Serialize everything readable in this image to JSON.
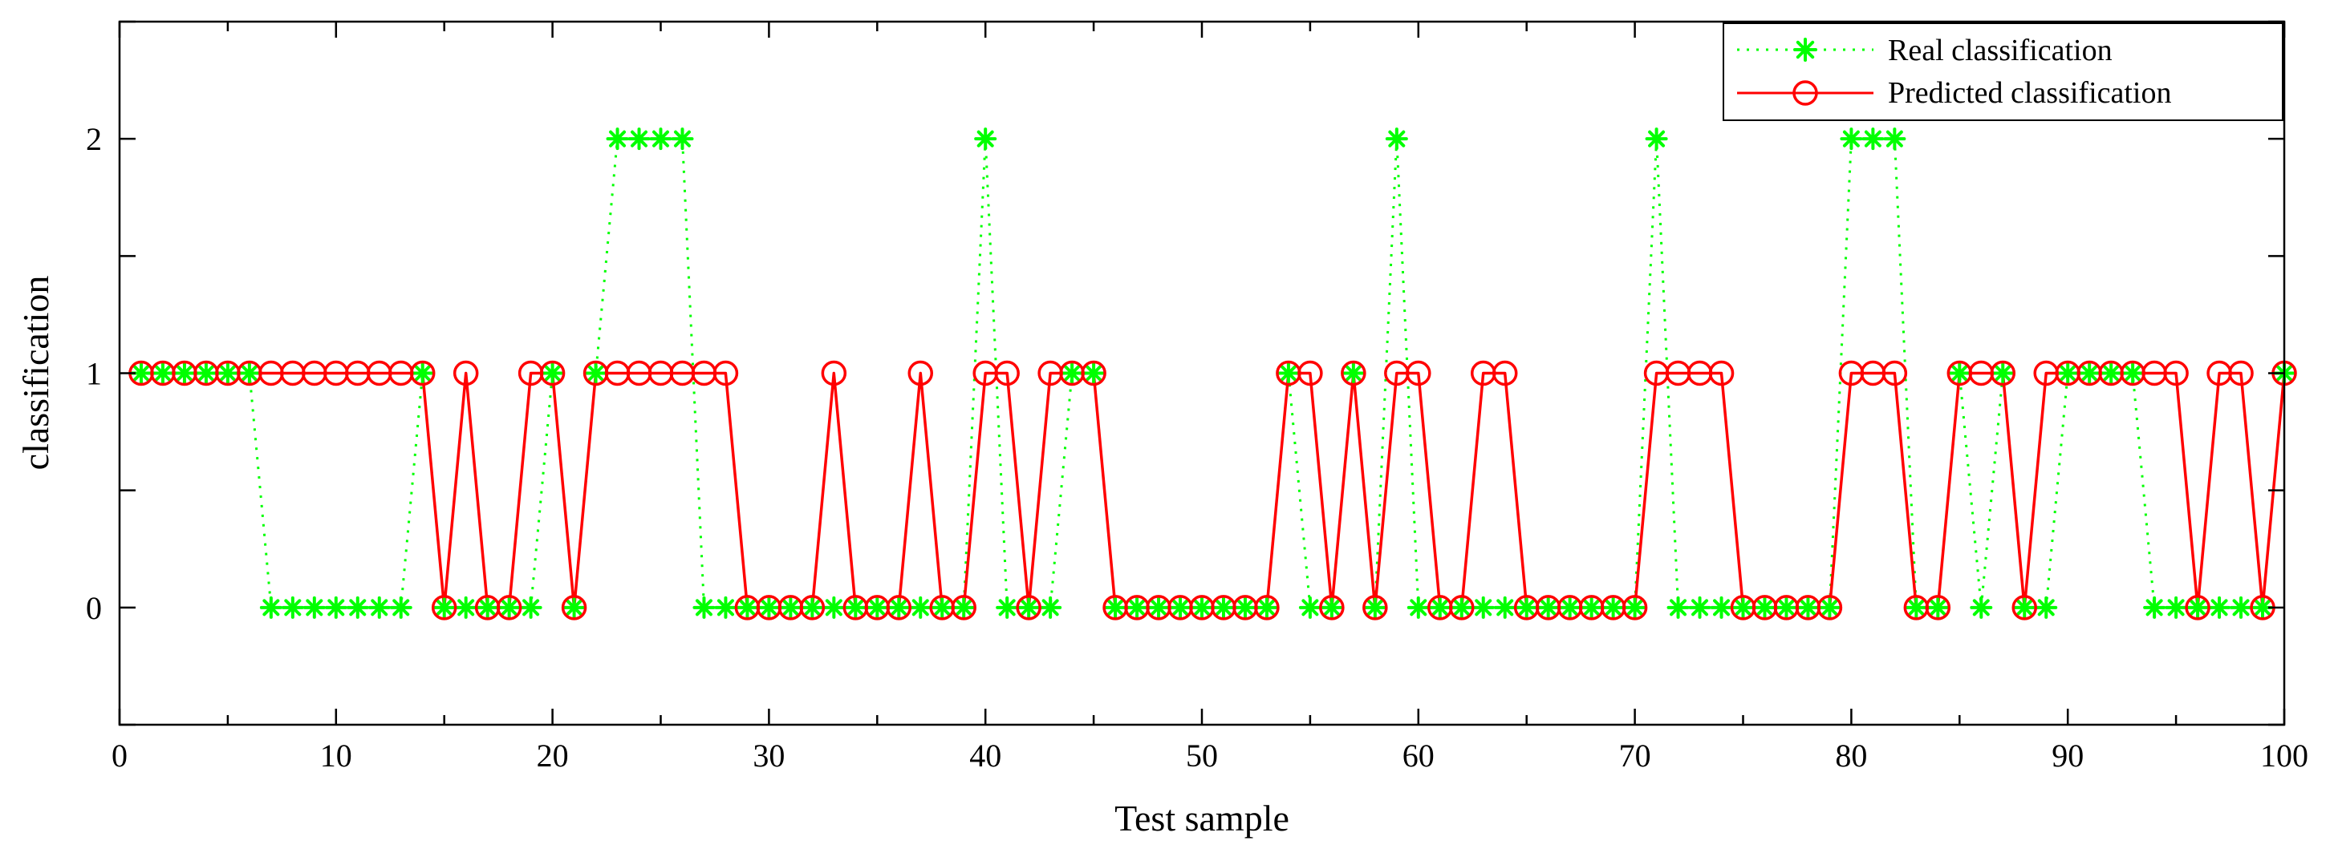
{
  "chart_data": {
    "type": "line",
    "title": "",
    "xlabel": "Test sample",
    "ylabel": "classification",
    "xlim": [
      0,
      100
    ],
    "ylim": [
      -0.5,
      2.5
    ],
    "xticks": [
      "0",
      "10",
      "20",
      "30",
      "40",
      "50",
      "60",
      "70",
      "80",
      "90",
      "100"
    ],
    "yticks": [
      "0",
      "1",
      "2"
    ],
    "grid": false,
    "legend_position": "top-right",
    "x": [
      1,
      2,
      3,
      4,
      5,
      6,
      7,
      8,
      9,
      10,
      11,
      12,
      13,
      14,
      15,
      16,
      17,
      18,
      19,
      20,
      21,
      22,
      23,
      24,
      25,
      26,
      27,
      28,
      29,
      30,
      31,
      32,
      33,
      34,
      35,
      36,
      37,
      38,
      39,
      40,
      41,
      42,
      43,
      44,
      45,
      46,
      47,
      48,
      49,
      50,
      51,
      52,
      53,
      54,
      55,
      56,
      57,
      58,
      59,
      60,
      61,
      62,
      63,
      64,
      65,
      66,
      67,
      68,
      69,
      70,
      71,
      72,
      73,
      74,
      75,
      76,
      77,
      78,
      79,
      80,
      81,
      82,
      83,
      84,
      85,
      86,
      87,
      88,
      89,
      90,
      91,
      92,
      93,
      94,
      95,
      96,
      97,
      98,
      99,
      100
    ],
    "series": [
      {
        "name": "Real classification",
        "color": "#00ff00",
        "line_style": "dotted",
        "marker": "asterisk",
        "values": [
          1,
          1,
          1,
          1,
          1,
          1,
          0,
          0,
          0,
          0,
          0,
          0,
          0,
          1,
          0,
          0,
          0,
          0,
          0,
          1,
          0,
          1,
          2,
          2,
          2,
          2,
          0,
          0,
          0,
          0,
          0,
          0,
          0,
          0,
          0,
          0,
          0,
          0,
          0,
          2,
          0,
          0,
          0,
          1,
          1,
          0,
          0,
          0,
          0,
          0,
          0,
          0,
          0,
          1,
          0,
          0,
          1,
          0,
          2,
          0,
          0,
          0,
          0,
          0,
          0,
          0,
          0,
          0,
          0,
          0,
          2,
          0,
          0,
          0,
          0,
          0,
          0,
          0,
          0,
          2,
          2,
          2,
          0,
          0,
          1,
          0,
          1,
          0,
          0,
          1,
          1,
          1,
          1,
          0,
          0,
          0,
          0,
          0,
          0,
          1
        ]
      },
      {
        "name": "Predicted classification",
        "color": "#ff0000",
        "line_style": "solid",
        "marker": "circle",
        "values": [
          1,
          1,
          1,
          1,
          1,
          1,
          1,
          1,
          1,
          1,
          1,
          1,
          1,
          1,
          0,
          1,
          0,
          0,
          1,
          1,
          0,
          1,
          1,
          1,
          1,
          1,
          1,
          1,
          0,
          0,
          0,
          0,
          1,
          0,
          0,
          0,
          1,
          0,
          0,
          1,
          1,
          0,
          1,
          1,
          1,
          0,
          0,
          0,
          0,
          0,
          0,
          0,
          0,
          1,
          1,
          0,
          1,
          0,
          1,
          1,
          0,
          0,
          1,
          1,
          0,
          0,
          0,
          0,
          0,
          0,
          1,
          1,
          1,
          1,
          0,
          0,
          0,
          0,
          0,
          1,
          1,
          1,
          0,
          0,
          1,
          1,
          1,
          0,
          1,
          1,
          1,
          1,
          1,
          1,
          1,
          0,
          1,
          1,
          0,
          1
        ]
      }
    ]
  }
}
